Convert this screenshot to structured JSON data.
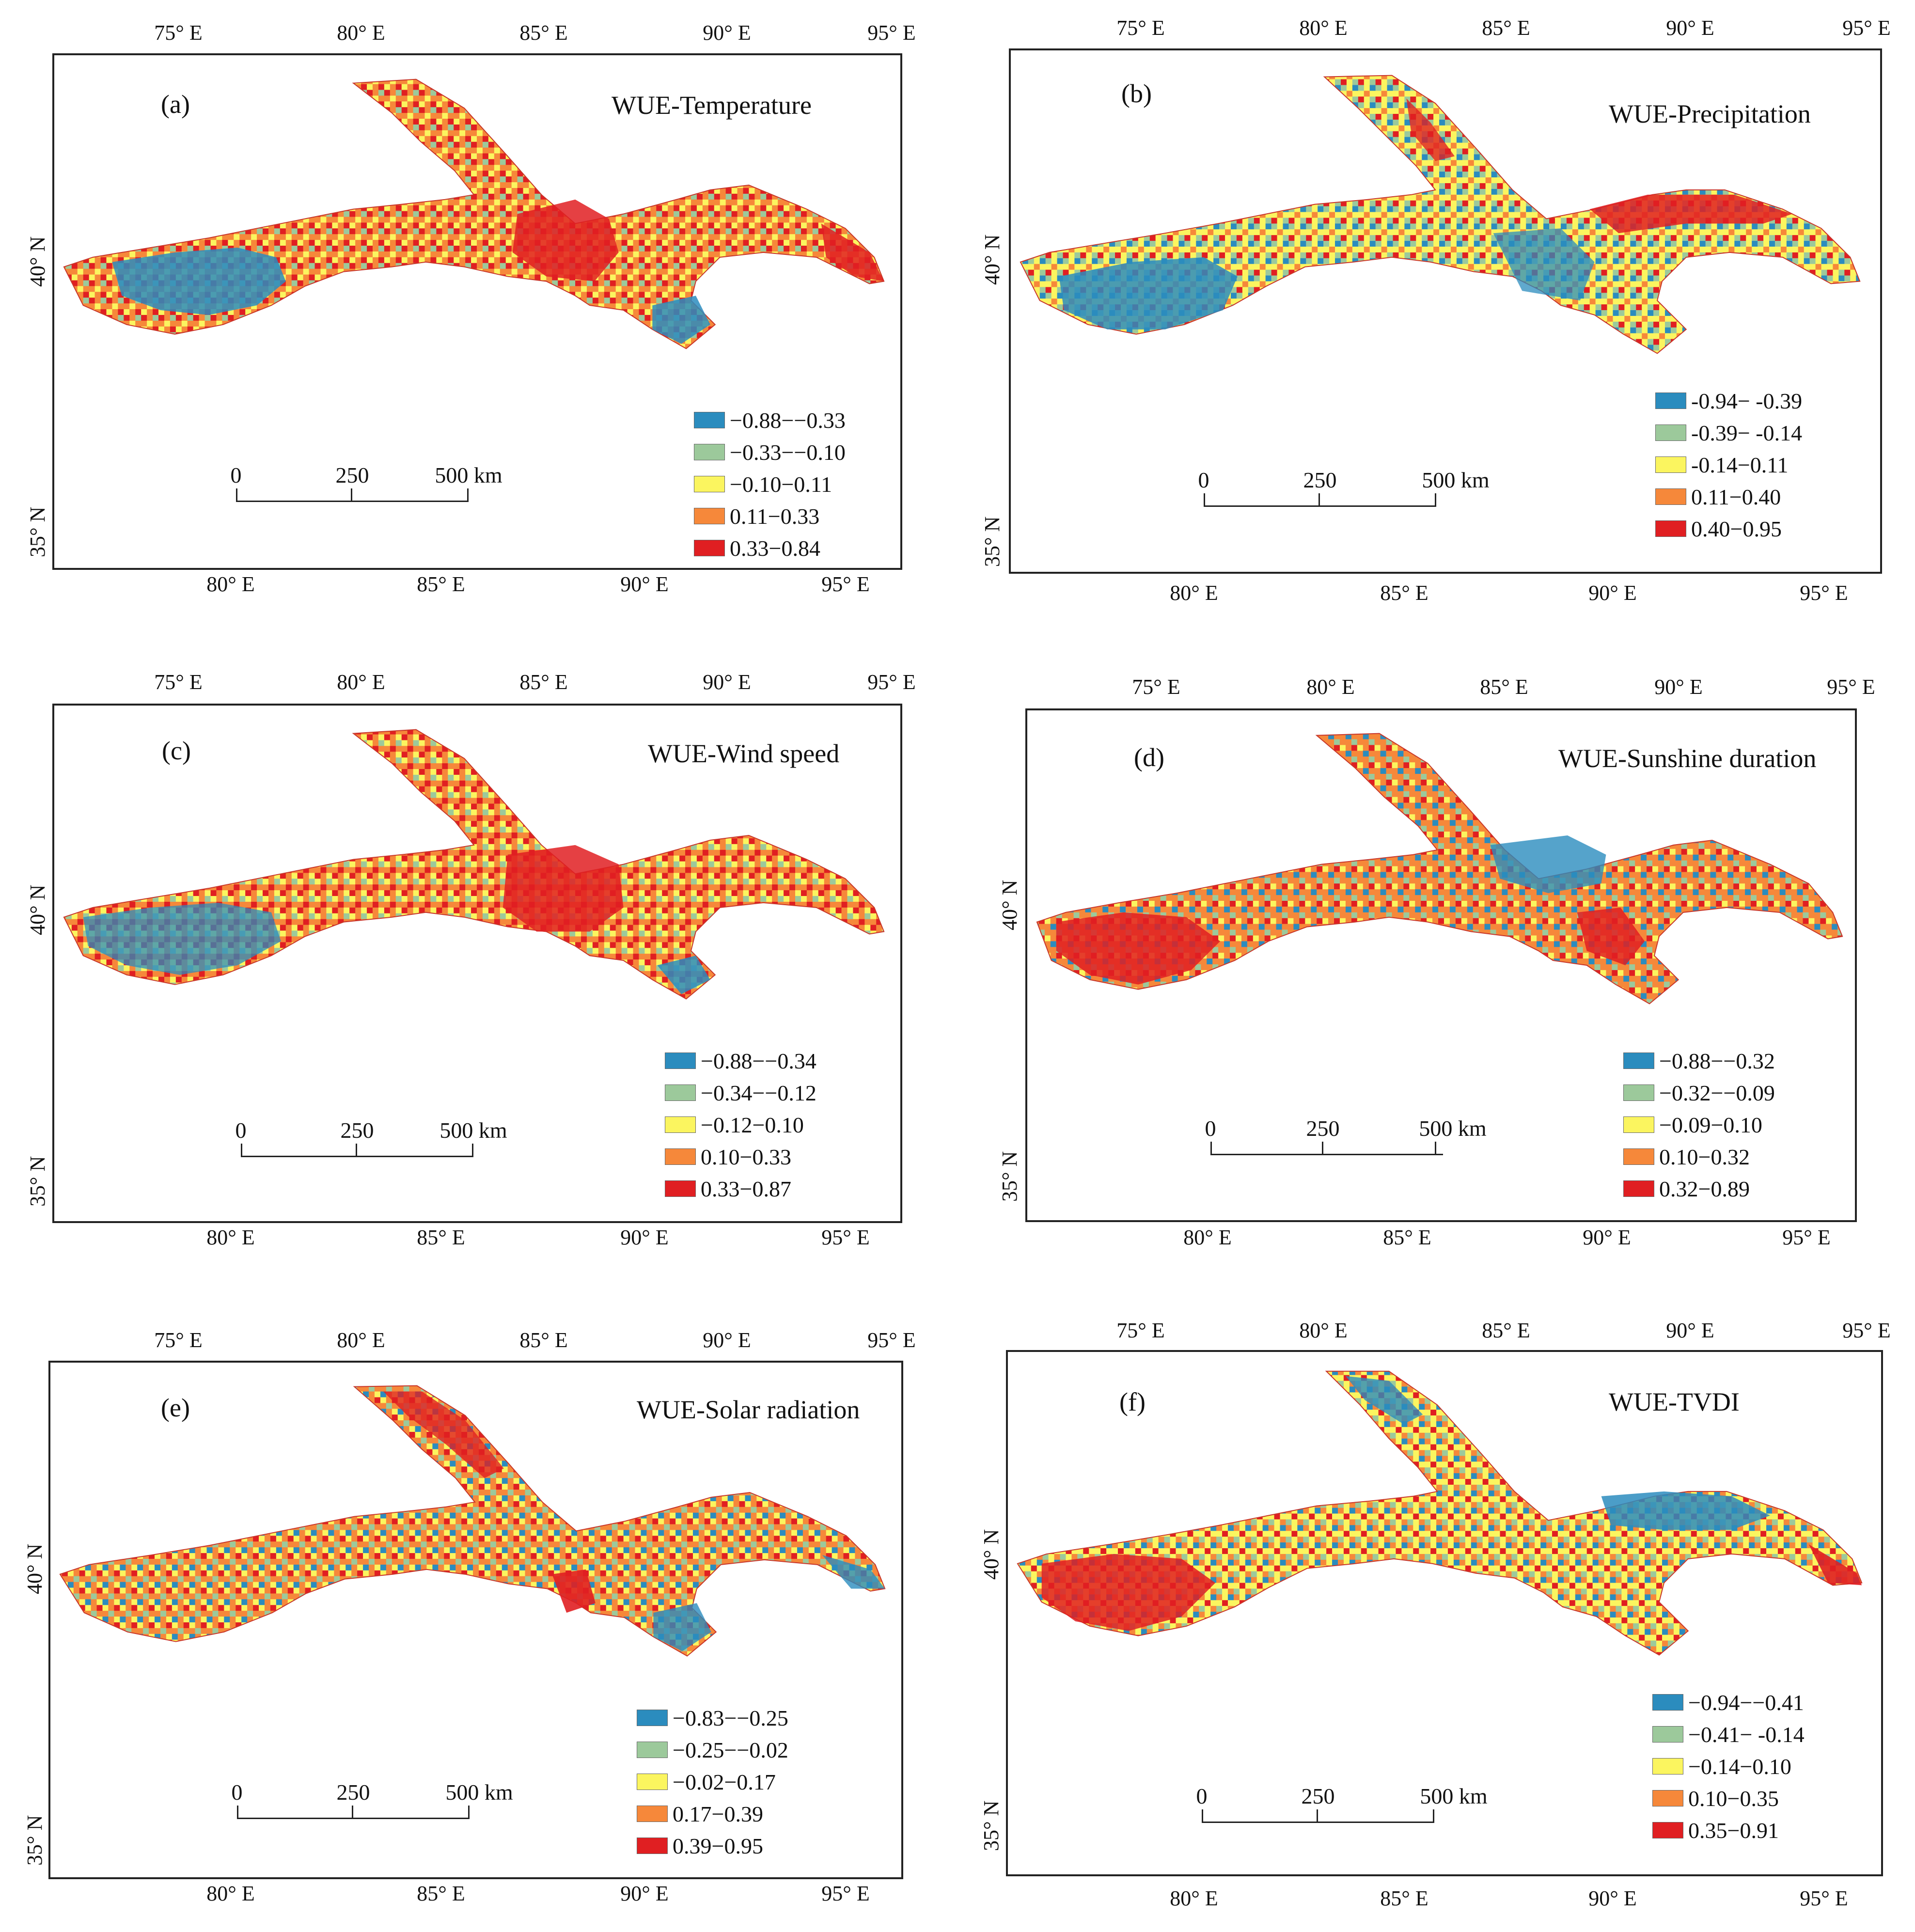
{
  "colors": [
    "#2b8cbe",
    "#9cc99b",
    "#fbf55f",
    "#f6883a",
    "#e01f22"
  ],
  "scale_bar": {
    "labels": [
      "0",
      "250",
      "500 km"
    ]
  },
  "panels": [
    {
      "letter": "(a)",
      "title": "WUE-Temperature",
      "top_lon": [
        "75° E",
        "80° E",
        "85° E",
        "90° E",
        "95° E"
      ],
      "bottom_lon": [
        "80° E",
        "85° E",
        "90° E",
        "95° E"
      ],
      "lat": [
        "40° N",
        "35° N"
      ],
      "legend": [
        "−0.88−−0.33",
        "−0.33−−0.10",
        "−0.10−0.11",
        "0.11−0.33",
        "0.33−0.84"
      ]
    },
    {
      "letter": "(b)",
      "title": "WUE-Precipitation",
      "top_lon": [
        "75° E",
        "80° E",
        "85° E",
        "90° E",
        "95° E"
      ],
      "bottom_lon": [
        "80° E",
        "85° E",
        "90° E",
        "95° E"
      ],
      "lat": [
        "40° N",
        "35° N"
      ],
      "legend": [
        "-0.94− -0.39",
        "-0.39− -0.14",
        "-0.14−0.11",
        "0.11−0.40",
        "0.40−0.95"
      ]
    },
    {
      "letter": "(c)",
      "title": "WUE-Wind speed",
      "top_lon": [
        "75° E",
        "80° E",
        "85° E",
        "90° E",
        "95° E"
      ],
      "bottom_lon": [
        "80° E",
        "85° E",
        "90° E",
        "95° E"
      ],
      "lat": [
        "40° N",
        "35° N"
      ],
      "legend": [
        "−0.88−−0.34",
        "−0.34−−0.12",
        "−0.12−0.10",
        "0.10−0.33",
        "0.33−0.87"
      ]
    },
    {
      "letter": "(d)",
      "title": "WUE-Sunshine duration",
      "top_lon": [
        "75° E",
        "80° E",
        "85° E",
        "90° E",
        "95° E"
      ],
      "bottom_lon": [
        "80° E",
        "85° E",
        "90° E",
        "95° E"
      ],
      "lat": [
        "40° N",
        "35° N"
      ],
      "legend": [
        "−0.88−−0.32",
        "−0.32−−0.09",
        "−0.09−0.10",
        "0.10−0.32",
        "0.32−0.89"
      ]
    },
    {
      "letter": "(e)",
      "title": "WUE-Solar radiation",
      "top_lon": [
        "75° E",
        "80° E",
        "85° E",
        "90° E",
        "95° E"
      ],
      "bottom_lon": [
        "80° E",
        "85° E",
        "90° E",
        "95° E"
      ],
      "lat": [
        "40° N",
        "35° N"
      ],
      "legend": [
        "−0.83−−0.25",
        "−0.25−−0.02",
        "−0.02−0.17",
        "0.17−0.39",
        "0.39−0.95"
      ]
    },
    {
      "letter": "(f)",
      "title": "WUE-TVDI",
      "top_lon": [
        "75° E",
        "80° E",
        "85° E",
        "90° E",
        "95° E"
      ],
      "bottom_lon": [
        "80° E",
        "85° E",
        "90° E",
        "95° E"
      ],
      "lat": [
        "40° N",
        "35° N"
      ],
      "legend": [
        "−0.94−−0.41",
        "−0.41− -0.14",
        "−0.14−0.10",
        "0.10−0.35",
        "0.35−0.91"
      ]
    }
  ]
}
